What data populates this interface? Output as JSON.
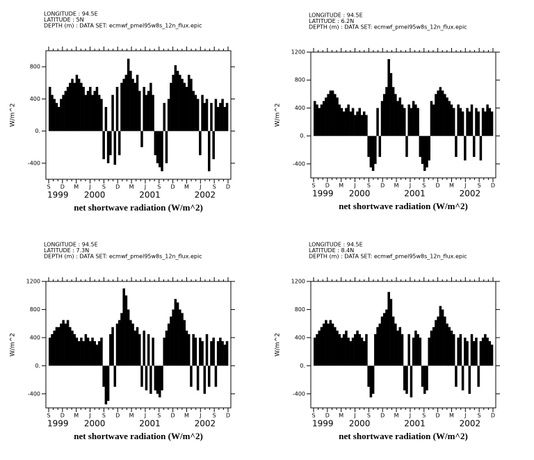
{
  "chart_data": [
    {
      "type": "bar",
      "color": "#000000",
      "header": [
        "LONGITUDE : 94.5E",
        "LATITUDE : 5N",
        "DEPTH (m) : DATA SET: ecmwf_pmel95w8s_12n_flux.epic"
      ],
      "ylabel": "W/m^2",
      "xlabel": "net shortwave radiation (W/m^2)",
      "xtick_labels": [
        "S",
        "D",
        "M",
        "J",
        "S",
        "D",
        "M",
        "J",
        "S",
        "D",
        "M",
        "J",
        "S",
        "D"
      ],
      "year_labels": [
        "1999",
        "2000",
        "2001",
        "2002"
      ],
      "ylim": [
        -600,
        1000
      ],
      "yticks": [
        {
          "value": -400,
          "label": "-400"
        },
        {
          "value": 0,
          "label": "0."
        },
        400,
        800
      ],
      "values": [
        550,
        450,
        400,
        350,
        300,
        400,
        450,
        500,
        550,
        600,
        650,
        600,
        700,
        650,
        600,
        550,
        450,
        500,
        550,
        450,
        500,
        550,
        450,
        400,
        -350,
        300,
        -400,
        -300,
        450,
        -420,
        550,
        -300,
        600,
        650,
        700,
        900,
        750,
        650,
        600,
        700,
        500,
        -200,
        550,
        450,
        500,
        600,
        450,
        -300,
        -400,
        -450,
        -500,
        350,
        -400,
        400,
        600,
        700,
        820,
        750,
        700,
        650,
        600,
        550,
        700,
        650,
        500,
        450,
        400,
        -300,
        450,
        350,
        400,
        -500,
        350,
        -350,
        400,
        300,
        350,
        400,
        300,
        350
      ]
    },
    {
      "type": "bar",
      "color": "#000000",
      "header": [
        "LONGITUDE : 94.5E",
        "LATITUDE : 6.2N",
        "DEPTH (m) : DATA SET: ecmwf_pmel95w8s_12n_flux.epic"
      ],
      "ylabel": "W/m^2",
      "xlabel": "net shortwave radiation (W/m^2)",
      "xtick_labels": [
        "S",
        "D",
        "M",
        "J",
        "S",
        "D",
        "M",
        "J",
        "S",
        "D",
        "M",
        "J",
        "S",
        "D"
      ],
      "year_labels": [
        "1999",
        "2000",
        "2001",
        "2002"
      ],
      "ylim": [
        -600,
        1200
      ],
      "yticks": [
        {
          "value": -400,
          "label": "-400"
        },
        {
          "value": 0,
          "label": "0."
        },
        400,
        800,
        1200
      ],
      "values": [
        500,
        450,
        400,
        450,
        500,
        550,
        600,
        650,
        650,
        600,
        550,
        450,
        400,
        350,
        400,
        450,
        350,
        400,
        300,
        350,
        400,
        300,
        350,
        300,
        -300,
        -450,
        -500,
        -400,
        400,
        -300,
        500,
        600,
        700,
        1100,
        900,
        700,
        600,
        500,
        550,
        450,
        400,
        -300,
        450,
        400,
        500,
        450,
        400,
        -300,
        -400,
        -500,
        -450,
        -350,
        500,
        450,
        600,
        650,
        700,
        650,
        600,
        550,
        500,
        450,
        400,
        -300,
        450,
        400,
        350,
        -350,
        400,
        350,
        450,
        -300,
        400,
        350,
        -350,
        400,
        350,
        450,
        400,
        350
      ]
    },
    {
      "type": "bar",
      "color": "#000000",
      "header": [
        "LONGITUDE : 94.5E",
        "LATITUDE : 7.3N",
        "DEPTH (m) : DATA SET: ecmwf_pmel95w8s_12n_flux.epic"
      ],
      "ylabel": "W/m^2",
      "xlabel": "net shortwave radiation (W/m^2)",
      "xtick_labels": [
        "S",
        "D",
        "M",
        "J",
        "S",
        "D",
        "M",
        "J",
        "S",
        "D",
        "M",
        "J",
        "S",
        "D"
      ],
      "year_labels": [
        "1999",
        "2000",
        "2001",
        "2002"
      ],
      "ylim": [
        -600,
        1200
      ],
      "yticks": [
        {
          "value": -400,
          "label": "-400"
        },
        {
          "value": 0,
          "label": "0."
        },
        400,
        800,
        1200
      ],
      "values": [
        400,
        450,
        500,
        550,
        550,
        600,
        650,
        600,
        650,
        550,
        500,
        450,
        400,
        350,
        400,
        350,
        450,
        400,
        350,
        400,
        350,
        300,
        350,
        400,
        -300,
        -550,
        -500,
        450,
        550,
        -300,
        600,
        650,
        750,
        1100,
        1000,
        800,
        650,
        600,
        500,
        550,
        450,
        -300,
        500,
        -350,
        450,
        -400,
        400,
        -350,
        -400,
        -450,
        -350,
        400,
        500,
        600,
        700,
        800,
        950,
        900,
        800,
        750,
        650,
        500,
        450,
        -300,
        450,
        400,
        -350,
        400,
        350,
        -400,
        450,
        -300,
        350,
        400,
        -300,
        350,
        400,
        350,
        300,
        350
      ]
    },
    {
      "type": "bar",
      "color": "#000000",
      "header": [
        "LONGITUDE : 94.5E",
        "LATITUDE : 8.4N",
        "DEPTH (m) : DATA SET: ecmwf_pmel95w8s_12n_flux.epic"
      ],
      "ylabel": "W/m^2",
      "xlabel": "net shortwave radiation (W/m^2)",
      "xtick_labels": [
        "S",
        "D",
        "M",
        "J",
        "S",
        "D",
        "M",
        "J",
        "S",
        "D",
        "M",
        "J",
        "S",
        "D"
      ],
      "year_labels": [
        "1999",
        "2000",
        "2001",
        "2002"
      ],
      "ylim": [
        -600,
        1200
      ],
      "yticks": [
        {
          "value": -400,
          "label": "-400"
        },
        {
          "value": 0,
          "label": "0."
        },
        400,
        800,
        1200
      ],
      "values": [
        400,
        450,
        500,
        550,
        600,
        650,
        600,
        650,
        600,
        550,
        500,
        450,
        400,
        450,
        500,
        400,
        350,
        400,
        450,
        500,
        450,
        400,
        350,
        450,
        -300,
        -450,
        -400,
        450,
        550,
        600,
        700,
        750,
        800,
        1050,
        950,
        700,
        600,
        500,
        550,
        450,
        -350,
        -400,
        450,
        -450,
        400,
        500,
        450,
        400,
        -300,
        -400,
        -350,
        400,
        500,
        550,
        650,
        700,
        850,
        800,
        700,
        600,
        550,
        500,
        450,
        -300,
        400,
        450,
        -350,
        400,
        350,
        -400,
        450,
        350,
        400,
        -300,
        350,
        400,
        450,
        400,
        350,
        300
      ]
    }
  ]
}
